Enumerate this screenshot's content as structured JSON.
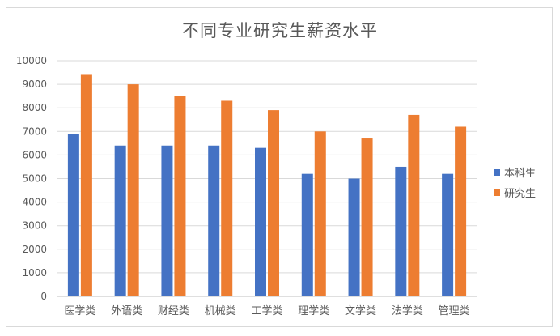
{
  "chart_data": {
    "type": "bar",
    "title": "不同专业研究生薪资水平",
    "xlabel": "",
    "ylabel": "",
    "ylim": [
      0,
      10000
    ],
    "yticks": [
      0,
      1000,
      2000,
      3000,
      4000,
      5000,
      6000,
      7000,
      8000,
      9000,
      10000
    ],
    "grid": true,
    "legend_position": "right",
    "categories": [
      "医学类",
      "外语类",
      "财经类",
      "机械类",
      "工学类",
      "理学类",
      "文学类",
      "法学类",
      "管理类"
    ],
    "series": [
      {
        "name": "本科生",
        "color": "#4472c4",
        "values": [
          6900,
          6400,
          6400,
          6400,
          6300,
          5200,
          5000,
          5500,
          5200
        ]
      },
      {
        "name": "研究生",
        "color": "#ed7d31",
        "values": [
          9400,
          9000,
          8500,
          8300,
          7900,
          7000,
          6700,
          7700,
          7200
        ]
      }
    ]
  }
}
